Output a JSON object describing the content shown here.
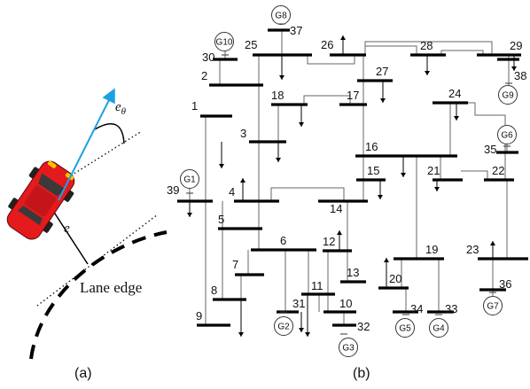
{
  "panel_a": {
    "caption": "(a)",
    "lane_label": "Lane edge",
    "error_label": "e",
    "angle_label_base": "e",
    "angle_label_sub": "θ",
    "colors": {
      "car_body": "#e41a1c",
      "heading_arrow": "#1ba1e2",
      "headlight": "#f5c400"
    }
  },
  "panel_b": {
    "caption": "(b)",
    "buses": [
      {
        "id": "1",
        "label": "1"
      },
      {
        "id": "2",
        "label": "2"
      },
      {
        "id": "3",
        "label": "3"
      },
      {
        "id": "4",
        "label": "4"
      },
      {
        "id": "5",
        "label": "5"
      },
      {
        "id": "6",
        "label": "6"
      },
      {
        "id": "7",
        "label": "7"
      },
      {
        "id": "8",
        "label": "8"
      },
      {
        "id": "9",
        "label": "9"
      },
      {
        "id": "10",
        "label": "10"
      },
      {
        "id": "11",
        "label": "11"
      },
      {
        "id": "12",
        "label": "12"
      },
      {
        "id": "13",
        "label": "13"
      },
      {
        "id": "14",
        "label": "14"
      },
      {
        "id": "15",
        "label": "15"
      },
      {
        "id": "16",
        "label": "16"
      },
      {
        "id": "17",
        "label": "17"
      },
      {
        "id": "18",
        "label": "18"
      },
      {
        "id": "19",
        "label": "19"
      },
      {
        "id": "20",
        "label": "20"
      },
      {
        "id": "21",
        "label": "21"
      },
      {
        "id": "22",
        "label": "22"
      },
      {
        "id": "23",
        "label": "23"
      },
      {
        "id": "24",
        "label": "24"
      },
      {
        "id": "25",
        "label": "25"
      },
      {
        "id": "26",
        "label": "26"
      },
      {
        "id": "27",
        "label": "27"
      },
      {
        "id": "28",
        "label": "28"
      },
      {
        "id": "29",
        "label": "29"
      },
      {
        "id": "30",
        "label": "30"
      },
      {
        "id": "31",
        "label": "31"
      },
      {
        "id": "32",
        "label": "32"
      },
      {
        "id": "33",
        "label": "33"
      },
      {
        "id": "34",
        "label": "34"
      },
      {
        "id": "35",
        "label": "35"
      },
      {
        "id": "36",
        "label": "36"
      },
      {
        "id": "37",
        "label": "37"
      },
      {
        "id": "38",
        "label": "38"
      },
      {
        "id": "39",
        "label": "39"
      }
    ],
    "generators": [
      {
        "id": "G1",
        "label": "G1"
      },
      {
        "id": "G2",
        "label": "G2"
      },
      {
        "id": "G3",
        "label": "G3"
      },
      {
        "id": "G4",
        "label": "G4"
      },
      {
        "id": "G5",
        "label": "G5"
      },
      {
        "id": "G6",
        "label": "G6"
      },
      {
        "id": "G7",
        "label": "G7"
      },
      {
        "id": "G8",
        "label": "G8"
      },
      {
        "id": "G9",
        "label": "G9"
      },
      {
        "id": "G10",
        "label": "G10"
      }
    ]
  }
}
